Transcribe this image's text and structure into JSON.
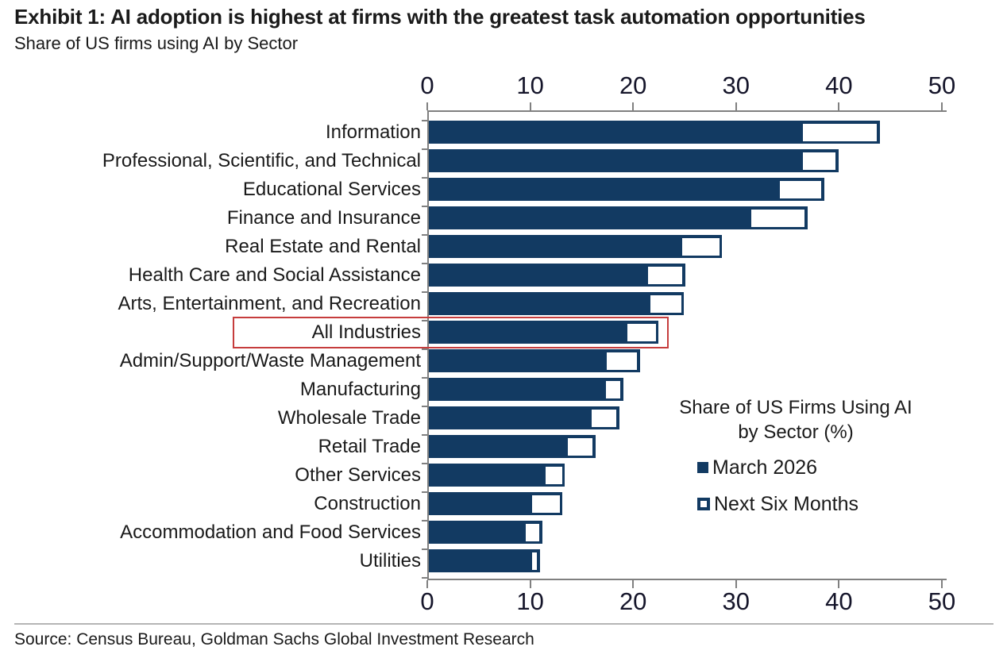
{
  "header": {
    "title": "Exhibit 1: AI adoption is highest at firms with the greatest task automation opportunities",
    "subtitle": "Share of US firms using AI by Sector"
  },
  "footer": {
    "source": "Source: Census Bureau, Goldman Sachs Global Investment Research"
  },
  "colors": {
    "bar_navy": "#123A62",
    "highlight_red": "#C63D3D",
    "axis_gray": "#808080",
    "divider_gray": "#b5b5b5",
    "text": "#1a1a1a"
  },
  "chart_data": {
    "type": "bar",
    "orientation": "horizontal",
    "title": "Share of US Firms Using AI by Sector (%)",
    "xlabel": "",
    "ylabel": "",
    "xlim": [
      0,
      50
    ],
    "xticks": [
      0,
      10,
      20,
      30,
      40,
      50
    ],
    "axes_shown": [
      "top",
      "bottom"
    ],
    "grid": false,
    "categories": [
      "Information",
      "Professional, Scientific, and Technical",
      "Educational Services",
      "Finance and Insurance",
      "Real Estate and Rental",
      "Health Care and Social Assistance",
      "Arts, Entertainment, and Recreation",
      "All Industries",
      "Admin/Support/Waste Management",
      "Manufacturing",
      "Wholesale Trade",
      "Retail Trade",
      "Other Services",
      "Construction",
      "Accommodation and Food Services",
      "Utilities"
    ],
    "series": [
      {
        "name": "March 2026",
        "style": "filled-navy",
        "values": [
          36,
          36,
          33.8,
          31,
          24.3,
          21,
          21.2,
          19,
          17,
          16.9,
          15.5,
          13.2,
          11,
          9.7,
          9.1,
          9.7
        ]
      },
      {
        "name": "Next Six Months",
        "style": "white-box-outlined-navy",
        "note": "values are cumulative bar totals; white segment spans from March 2026 value to this total",
        "values": [
          43.8,
          39.8,
          38.4,
          36.8,
          28.5,
          24.9,
          24.8,
          22.3,
          20.5,
          18.9,
          18.5,
          16.2,
          13.2,
          13,
          11,
          10.8
        ]
      }
    ],
    "highlighted_category": "All Industries",
    "legend": {
      "position": "middle-right",
      "title_lines": [
        "Share of US Firms Using AI",
        "by Sector (%)"
      ],
      "items": [
        {
          "label": "March 2026",
          "swatch": "filled"
        },
        {
          "label": "Next Six Months",
          "swatch": "outlined"
        }
      ]
    }
  }
}
